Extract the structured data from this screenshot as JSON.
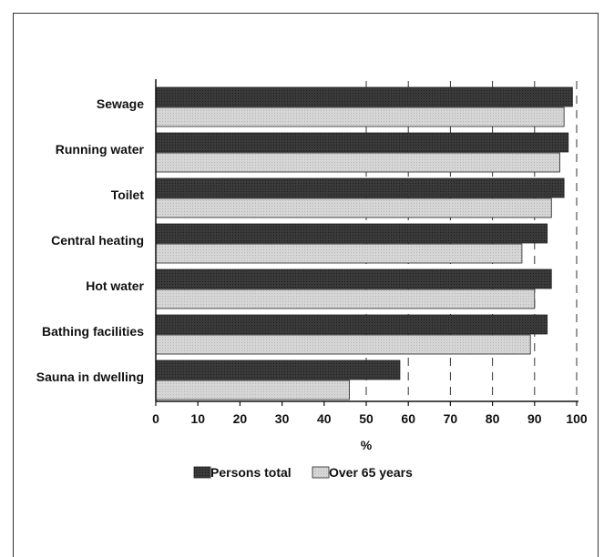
{
  "chart_data": {
    "type": "bar",
    "orientation": "horizontal",
    "categories": [
      "Sewage",
      "Running water",
      "Toilet",
      "Central heating",
      "Hot water",
      "Bathing facilities",
      "Sauna in dwelling"
    ],
    "series": [
      {
        "name": "Persons total",
        "values": [
          99,
          98,
          97,
          93,
          94,
          93,
          58
        ],
        "color": "#3a3a3a"
      },
      {
        "name": "Over 65 years",
        "values": [
          97,
          96,
          94,
          87,
          90,
          89,
          46
        ],
        "color": "#d6d6d6"
      }
    ],
    "title": "",
    "xlabel": "%",
    "ylabel": "",
    "xlim": [
      0,
      100
    ],
    "xticks": [
      "0",
      "10",
      "20",
      "30",
      "40",
      "50",
      "60",
      "70",
      "80",
      "90",
      "100"
    ],
    "grid": "vertical dashed lines at 50-100",
    "legend_position": "bottom"
  }
}
